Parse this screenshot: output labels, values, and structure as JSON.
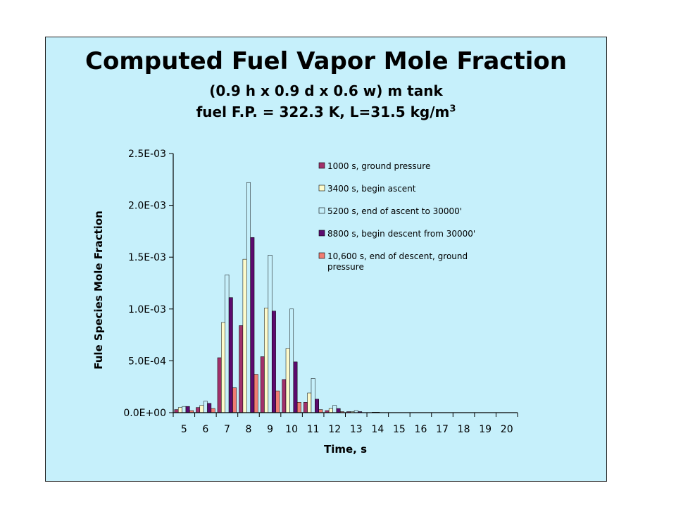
{
  "colors": {
    "background": "#c6f0fb",
    "series": [
      "#a1316a",
      "#fdfbcb",
      "#c6f0fb",
      "#5c0a6e",
      "#f07c72"
    ]
  },
  "chart_data": {
    "type": "bar",
    "title": "Computed Fuel Vapor Mole Fraction",
    "subtitle_line1": "(0.9 h x 0.9 d x 0.6 w) m tank",
    "subtitle_line2_text": "fuel F.P. = 322.3 K, L=31.5 kg/m",
    "subtitle_line2_sup": "3",
    "xlabel": "Time, s",
    "ylabel": "Fule Species Mole Fraction",
    "ylim": [
      0,
      0.0025
    ],
    "yticks": [
      "0.0E+00",
      "5.0E-04",
      "1.0E-03",
      "1.5E-03",
      "2.0E-03",
      "2.5E-03"
    ],
    "grid": false,
    "legend_position": "top-right",
    "categories": [
      "5",
      "6",
      "7",
      "8",
      "9",
      "10",
      "11",
      "12",
      "13",
      "14",
      "15",
      "16",
      "17",
      "18",
      "19",
      "20"
    ],
    "series": [
      {
        "name": "1000 s, ground pressure",
        "values": [
          3e-05,
          5e-05,
          0.00053,
          0.00084,
          0.00054,
          0.00032,
          0.0001,
          2e-05,
          1e-05,
          0,
          0,
          0,
          0,
          0,
          0,
          0
        ]
      },
      {
        "name": "3400 s, begin ascent",
        "values": [
          5e-05,
          7e-05,
          0.00087,
          0.00148,
          0.00101,
          0.00062,
          0.00019,
          4e-05,
          1e-05,
          5e-06,
          0,
          0,
          0,
          0,
          0,
          0
        ]
      },
      {
        "name": "5200 s, end of ascent to 30000'",
        "values": [
          6e-05,
          0.00011,
          0.00133,
          0.00222,
          0.00152,
          0.001,
          0.00033,
          7e-05,
          2e-05,
          5e-06,
          0,
          0,
          0,
          0,
          0,
          0
        ]
      },
      {
        "name": "8800 s, begin descent from 30000'",
        "values": [
          6e-05,
          9e-05,
          0.00111,
          0.00169,
          0.00098,
          0.00049,
          0.00013,
          4e-05,
          1e-05,
          0,
          0,
          0,
          0,
          0,
          0,
          0
        ]
      },
      {
        "name": "10,600 s, end of descent, ground pressure",
        "values": [
          2e-05,
          4e-05,
          0.00024,
          0.00037,
          0.00021,
          0.0001,
          3e-05,
          1e-05,
          0,
          0,
          0,
          0,
          0,
          0,
          0,
          0
        ]
      }
    ]
  }
}
